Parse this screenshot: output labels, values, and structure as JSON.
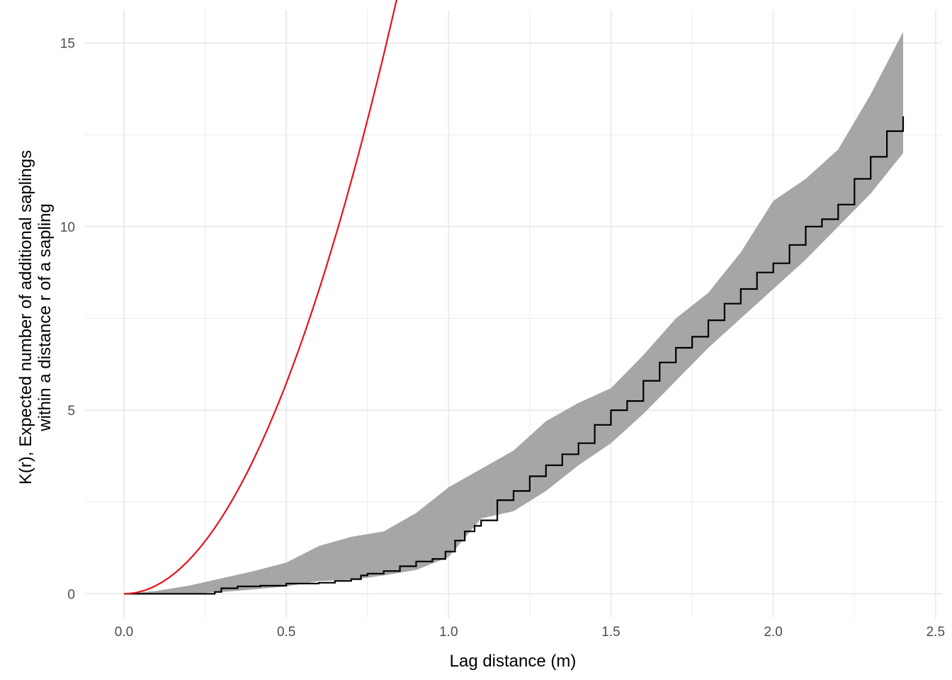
{
  "chart_data": {
    "type": "line",
    "title": "",
    "xlabel": "Lag distance (m)",
    "ylabel_line1": "K(r), Expected number of additional saplings",
    "ylabel_line2": "within a distance r of a sapling",
    "xlim": [
      -0.12,
      2.52
    ],
    "ylim": [
      -0.65,
      15.9
    ],
    "x_ticks": [
      0.0,
      0.5,
      1.0,
      1.5,
      2.0,
      2.5
    ],
    "x_tick_labels": [
      "0.0",
      "0.5",
      "1.0",
      "1.5",
      "2.0",
      "2.5"
    ],
    "x_minor_ticks": [
      0.25,
      0.75,
      1.25,
      1.75,
      2.25
    ],
    "y_ticks": [
      0,
      5,
      10,
      15
    ],
    "y_tick_labels": [
      "0",
      "5",
      "10",
      "15"
    ],
    "y_minor_ticks": [
      2.5,
      7.5,
      12.5
    ],
    "grid": true,
    "legend": "none",
    "colors": {
      "envelope": "#a6a6a6",
      "theoretical": "#e8111a",
      "observed": "#000000",
      "grid": "#ebebeb"
    },
    "series": [
      {
        "kind": "envelope",
        "x": [
          0.0,
          0.1,
          0.2,
          0.3,
          0.4,
          0.5,
          0.6,
          0.7,
          0.8,
          0.9,
          1.0,
          1.1,
          1.2,
          1.3,
          1.4,
          1.5,
          1.6,
          1.7,
          1.8,
          1.9,
          2.0,
          2.1,
          2.2,
          2.3,
          2.4
        ],
        "upper": [
          0.0,
          0.08,
          0.22,
          0.42,
          0.62,
          0.85,
          1.3,
          1.55,
          1.7,
          2.2,
          2.9,
          3.4,
          3.9,
          4.7,
          5.2,
          5.6,
          6.5,
          7.5,
          8.2,
          9.3,
          10.7,
          11.3,
          12.1,
          13.6,
          15.3
        ],
        "lower": [
          0.0,
          0.0,
          0.0,
          0.05,
          0.12,
          0.2,
          0.35,
          0.38,
          0.5,
          0.65,
          1.0,
          2.05,
          2.25,
          2.8,
          3.5,
          4.1,
          4.9,
          5.8,
          6.7,
          7.5,
          8.3,
          9.1,
          10.0,
          10.9,
          12.0
        ]
      },
      {
        "kind": "theoretical",
        "function": "K(r) = 7.3 * pi * r^2",
        "x_range": [
          0.0,
          2.4
        ]
      },
      {
        "kind": "observed",
        "x": [
          0.0,
          0.22,
          0.28,
          0.3,
          0.35,
          0.42,
          0.5,
          0.6,
          0.65,
          0.7,
          0.73,
          0.75,
          0.8,
          0.85,
          0.9,
          0.95,
          0.99,
          1.02,
          1.05,
          1.08,
          1.1,
          1.15,
          1.2,
          1.25,
          1.3,
          1.35,
          1.4,
          1.45,
          1.5,
          1.55,
          1.6,
          1.65,
          1.7,
          1.75,
          1.8,
          1.85,
          1.9,
          1.95,
          2.0,
          2.05,
          2.1,
          2.15,
          2.2,
          2.25,
          2.3,
          2.35,
          2.4
        ],
        "y": [
          0.0,
          0.0,
          0.05,
          0.15,
          0.2,
          0.22,
          0.28,
          0.3,
          0.35,
          0.4,
          0.5,
          0.55,
          0.62,
          0.75,
          0.88,
          0.95,
          1.15,
          1.45,
          1.7,
          1.85,
          2.0,
          2.55,
          2.8,
          3.2,
          3.5,
          3.8,
          4.1,
          4.6,
          5.0,
          5.25,
          5.8,
          6.3,
          6.7,
          7.0,
          7.45,
          7.9,
          8.3,
          8.75,
          9.0,
          9.5,
          10.0,
          10.2,
          10.6,
          11.3,
          11.9,
          12.6,
          13.0
        ]
      }
    ]
  }
}
